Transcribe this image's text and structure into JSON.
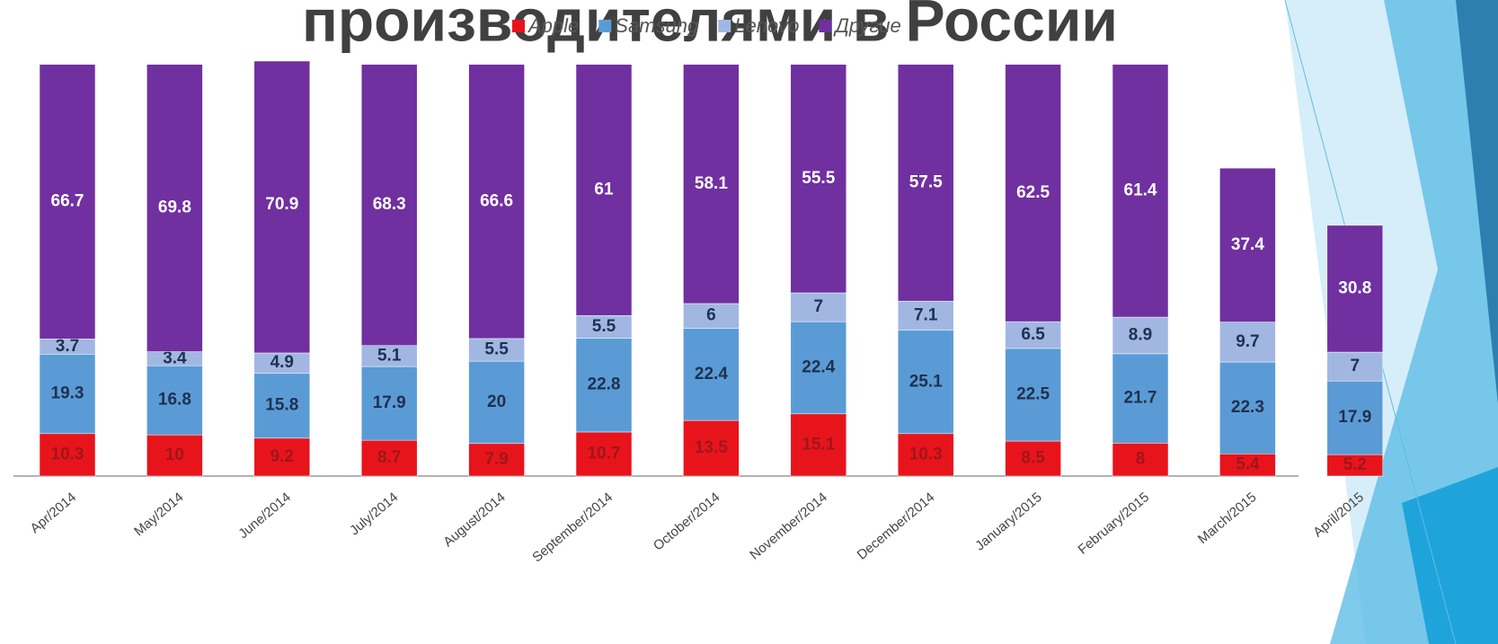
{
  "title": "производителями в России",
  "chart_data": {
    "type": "stacked_bar",
    "categories": [
      "Apr/2014",
      "May/2014",
      "June/2014",
      "July/2014",
      "August/2014",
      "September/2014",
      "October/2014",
      "November/2014",
      "December/2014",
      "January/2015",
      "February/2015",
      "March/2015",
      "April/2015"
    ],
    "series": [
      {
        "name": "Apple",
        "color": "#e8141c",
        "values": [
          10.3,
          10,
          9.2,
          8.7,
          7.9,
          10.7,
          13.5,
          15.1,
          10.3,
          8.5,
          8,
          5.4,
          5.2
        ]
      },
      {
        "name": "Samsung",
        "color": "#5b9bd5",
        "values": [
          19.3,
          16.8,
          15.8,
          17.9,
          20,
          22.8,
          22.4,
          22.4,
          25.1,
          22.5,
          21.7,
          22.3,
          17.9
        ]
      },
      {
        "name": "Lenovo",
        "color": "#a1b7e2",
        "values": [
          3.7,
          3.4,
          4.9,
          5.1,
          5.5,
          5.5,
          6,
          7,
          7.1,
          6.5,
          8.9,
          9.7,
          7
        ]
      },
      {
        "name": "Другие",
        "color": "#7030a0",
        "values": [
          66.7,
          69.8,
          70.9,
          68.3,
          66.6,
          61,
          58.1,
          55.5,
          57.5,
          62.5,
          61.4,
          37.4,
          30.8
        ]
      }
    ]
  }
}
